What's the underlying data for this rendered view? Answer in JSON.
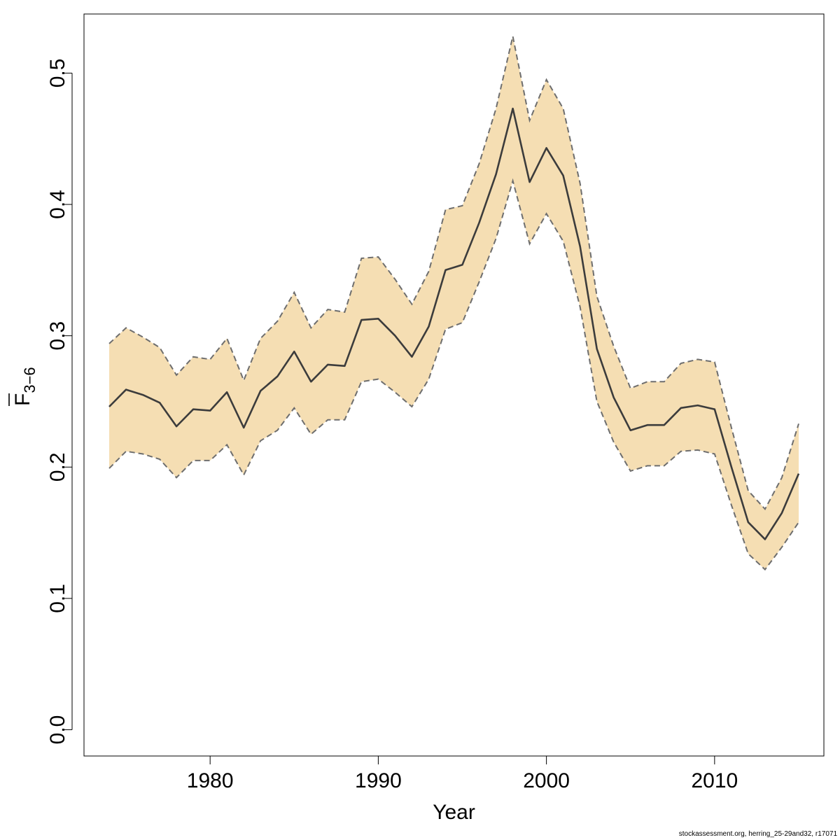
{
  "chart_data": {
    "type": "line",
    "xlabel": "Year",
    "ylabel_main": "F",
    "ylabel_sub": "3−6",
    "xlim": [
      1972.5,
      2016.5
    ],
    "ylim": [
      -0.02,
      0.545
    ],
    "x_ticks": [
      1980,
      1990,
      2000,
      2010
    ],
    "x_tick_labels": [
      "1980",
      "1990",
      "2000",
      "2010"
    ],
    "y_ticks": [
      0.0,
      0.1,
      0.2,
      0.3,
      0.4,
      0.5
    ],
    "y_tick_labels": [
      "0.0",
      "0.1",
      "0.2",
      "0.3",
      "0.4",
      "0.5"
    ],
    "colors": {
      "band": "#f5deb3",
      "bound_line": "#6e6e6e",
      "estimate_line": "#3c3c3c"
    },
    "x": [
      1974,
      1975,
      1976,
      1977,
      1978,
      1979,
      1980,
      1981,
      1982,
      1983,
      1984,
      1985,
      1986,
      1987,
      1988,
      1989,
      1990,
      1991,
      1992,
      1993,
      1994,
      1995,
      1996,
      1997,
      1998,
      1999,
      2000,
      2001,
      2002,
      2003,
      2004,
      2005,
      2006,
      2007,
      2008,
      2009,
      2010,
      2011,
      2012,
      2013,
      2014,
      2015
    ],
    "series": [
      {
        "role": "estimate",
        "values": [
          0.246,
          0.259,
          0.255,
          0.249,
          0.231,
          0.244,
          0.243,
          0.257,
          0.23,
          0.258,
          0.269,
          0.288,
          0.265,
          0.278,
          0.277,
          0.312,
          0.313,
          0.3,
          0.284,
          0.307,
          0.35,
          0.354,
          0.386,
          0.423,
          0.473,
          0.417,
          0.443,
          0.422,
          0.368,
          0.29,
          0.253,
          0.228,
          0.232,
          0.232,
          0.245,
          0.247,
          0.244,
          0.2,
          0.158,
          0.145,
          0.165,
          0.195
        ]
      },
      {
        "role": "upper",
        "values": [
          0.294,
          0.306,
          0.299,
          0.291,
          0.27,
          0.284,
          0.282,
          0.298,
          0.266,
          0.298,
          0.311,
          0.333,
          0.306,
          0.32,
          0.318,
          0.359,
          0.36,
          0.343,
          0.324,
          0.349,
          0.396,
          0.399,
          0.431,
          0.473,
          0.528,
          0.464,
          0.495,
          0.473,
          0.416,
          0.33,
          0.292,
          0.26,
          0.265,
          0.265,
          0.279,
          0.282,
          0.28,
          0.23,
          0.182,
          0.168,
          0.192,
          0.233
        ]
      },
      {
        "role": "lower",
        "values": [
          0.199,
          0.212,
          0.21,
          0.206,
          0.192,
          0.205,
          0.205,
          0.217,
          0.194,
          0.22,
          0.228,
          0.245,
          0.225,
          0.236,
          0.236,
          0.265,
          0.267,
          0.257,
          0.246,
          0.267,
          0.305,
          0.31,
          0.341,
          0.374,
          0.418,
          0.37,
          0.393,
          0.372,
          0.322,
          0.25,
          0.219,
          0.197,
          0.201,
          0.201,
          0.212,
          0.213,
          0.21,
          0.171,
          0.134,
          0.122,
          0.139,
          0.158
        ]
      }
    ]
  },
  "footer_text": "stockassessment.org, herring_25-29and32, r17071"
}
